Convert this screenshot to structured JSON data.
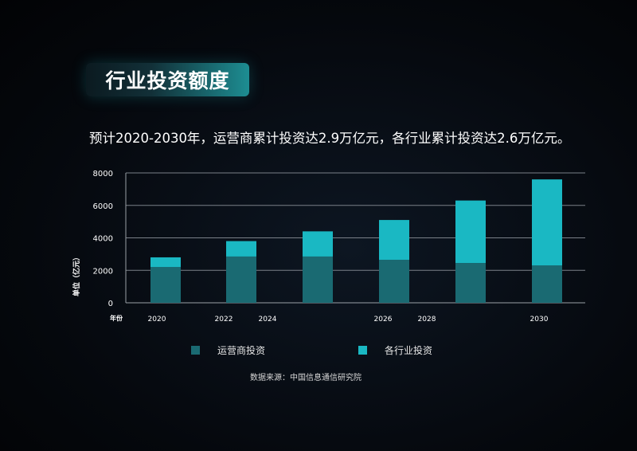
{
  "header": {
    "title": "行业投资额度",
    "subtitle": "预计2020-2030年，运营商累计投资达2.9万亿元，各行业累计投资达2.6万亿元。"
  },
  "source": "数据来源：中国信息通信研究院",
  "colors": {
    "operator": "#1a6a72",
    "industry": "#1ab8c3",
    "grid": "#7a8088"
  },
  "chart_data": {
    "type": "bar",
    "stacked": true,
    "ylabel": "单位（亿元）",
    "xlabel": "年份",
    "ylim": [
      0,
      8000
    ],
    "yticks": [
      0,
      2000,
      4000,
      6000,
      8000
    ],
    "xtick_labels": [
      "2020",
      "2022",
      "2024",
      "2026",
      "2028",
      "2030"
    ],
    "categories": [
      "2020",
      "2022",
      "2024",
      "2026",
      "2028",
      "2030"
    ],
    "series": [
      {
        "name": "运营商投资",
        "values": [
          2200,
          2850,
          2850,
          2650,
          2450,
          2300
        ]
      },
      {
        "name": "各行业投资",
        "values": [
          600,
          950,
          1550,
          2450,
          3850,
          5300
        ]
      }
    ],
    "legend": "bottom",
    "grid": true
  }
}
